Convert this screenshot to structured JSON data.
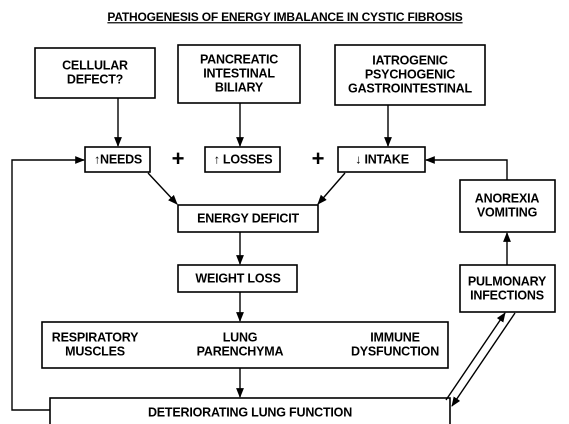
{
  "title": "PATHOGENESIS OF ENERGY IMBALANCE IN CYSTIC FIBROSIS",
  "nodes": [
    {
      "lines": [
        "CELLULAR",
        "DEFECT?"
      ]
    },
    {
      "lines": [
        "PANCREATIC",
        "INTESTINAL",
        "BILIARY"
      ]
    },
    {
      "lines": [
        "IATROGENIC",
        "PSYCHOGENIC",
        "GASTROINTESTINAL"
      ]
    },
    {
      "lines": [
        "↑NEEDS"
      ]
    },
    {
      "lines": [
        "↑ LOSSES"
      ]
    },
    {
      "lines": [
        "↓ INTAKE"
      ]
    },
    {
      "lines": [
        "ENERGY DEFICIT"
      ]
    },
    {
      "lines": [
        "WEIGHT LOSS"
      ]
    },
    {
      "lines": [
        "RESPIRATORY",
        "MUSCLES"
      ]
    },
    {
      "lines": [
        "LUNG",
        "PARENCHYMA"
      ]
    },
    {
      "lines": [
        "IMMUNE",
        "DYSFUNCTION"
      ]
    },
    {
      "lines": [
        "DETERIORATING LUNG FUNCTION"
      ]
    },
    {
      "lines": [
        "ANOREXIA",
        "VOMITING"
      ]
    },
    {
      "lines": [
        "PULMONARY",
        "INFECTIONS"
      ]
    }
  ],
  "operators": [
    "+",
    "+"
  ]
}
